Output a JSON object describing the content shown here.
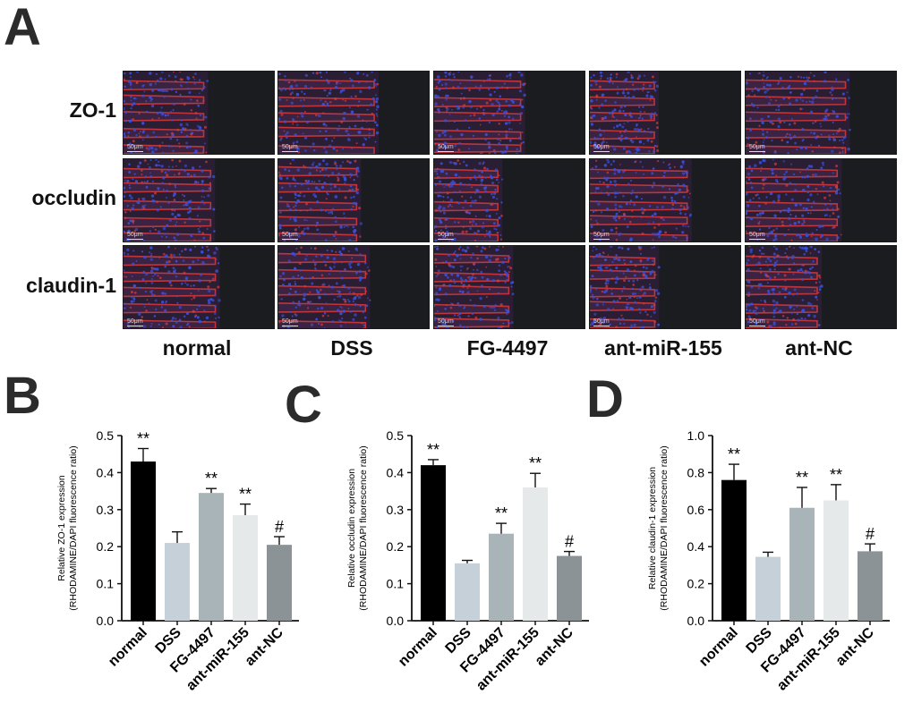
{
  "panels": {
    "a": "A",
    "b": "B",
    "c": "C",
    "d": "D"
  },
  "micrograph": {
    "rows": [
      "ZO-1",
      "occludin",
      "claudin-1"
    ],
    "columns": [
      "normal",
      "DSS",
      "FG-4497",
      "ant-miR-155",
      "ant-NC"
    ],
    "scale_bar": "50μm"
  },
  "colors": {
    "normal": "#000000",
    "DSS": "#c5d0d8",
    "FG-4497": "#a8b4b8",
    "ant-miR-155": "#e6e9ea",
    "ant-NC": "#8c9396",
    "dapi": "#3a4fd8",
    "rhodamine": "#d93a3a",
    "background": "#1b1c20"
  },
  "chart_data": [
    {
      "type": "bar",
      "panel": "B",
      "categories": [
        "normal",
        "DSS",
        "FG-4497",
        "ant-miR-155",
        "ant-NC"
      ],
      "values": [
        0.43,
        0.21,
        0.345,
        0.285,
        0.205
      ],
      "errors": [
        0.035,
        0.03,
        0.012,
        0.03,
        0.022
      ],
      "annotations": [
        "**",
        "",
        "**",
        "**",
        "#"
      ],
      "ylabel": [
        "Relative ZO-1 expression",
        "(RHODAMINE/DAPI fluorescence ratio)"
      ],
      "ylim": [
        0,
        0.5
      ],
      "yticks": [
        "0.0",
        "0.1",
        "0.2",
        "0.3",
        "0.4",
        "0.5"
      ]
    },
    {
      "type": "bar",
      "panel": "C",
      "categories": [
        "normal",
        "DSS",
        "FG-4497",
        "ant-miR-155",
        "ant-NC"
      ],
      "values": [
        0.42,
        0.155,
        0.235,
        0.36,
        0.175
      ],
      "errors": [
        0.015,
        0.008,
        0.028,
        0.038,
        0.012
      ],
      "annotations": [
        "**",
        "",
        "**",
        "**",
        "#"
      ],
      "ylabel": [
        "Relative occludin expression",
        "(RHODAMINE/DAPI fluorescence ratio)"
      ],
      "ylim": [
        0,
        0.5
      ],
      "yticks": [
        "0.0",
        "0.1",
        "0.2",
        "0.3",
        "0.4",
        "0.5"
      ]
    },
    {
      "type": "bar",
      "panel": "D",
      "categories": [
        "normal",
        "DSS",
        "FG-4497",
        "ant-miR-155",
        "ant-NC"
      ],
      "values": [
        0.76,
        0.345,
        0.61,
        0.65,
        0.375
      ],
      "errors": [
        0.085,
        0.025,
        0.11,
        0.085,
        0.04
      ],
      "annotations": [
        "**",
        "",
        "**",
        "**",
        "#"
      ],
      "ylabel": [
        "Relative claudin-1 expression",
        "(RHODAMINE/DAPI fluorescence ratio)"
      ],
      "ylim": [
        0,
        1.0
      ],
      "yticks": [
        "0.0",
        "0.2",
        "0.4",
        "0.6",
        "0.8",
        "1.0"
      ]
    }
  ]
}
